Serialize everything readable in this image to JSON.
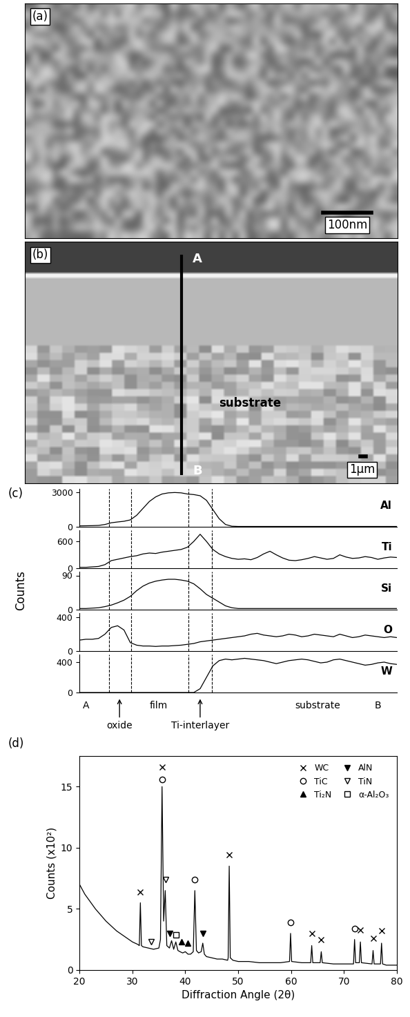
{
  "images": [
    {
      "label": "(a)",
      "scale_bar": "100nm"
    },
    {
      "label": "(b)",
      "line_start": "A",
      "line_end": "B",
      "region": "substrate",
      "scale_bar": "1µm"
    }
  ],
  "chart_data": [
    {
      "type": "line",
      "label": "(c)",
      "ylabel": "Counts",
      "x": [
        0,
        2,
        4,
        6,
        8,
        10,
        12,
        14,
        16,
        18,
        20,
        22,
        24,
        26,
        28,
        30,
        32,
        34,
        36,
        38,
        40,
        42,
        44,
        46,
        48,
        50,
        52,
        54,
        56,
        58,
        60,
        62,
        64,
        66,
        68,
        70,
        72,
        74,
        76,
        78,
        80,
        82,
        84,
        86,
        88,
        90,
        92,
        94,
        96,
        98,
        100
      ],
      "series": [
        {
          "name": "Al",
          "color": "#000000",
          "values": [
            80,
            90,
            100,
            120,
            200,
            350,
            420,
            480,
            600,
            1000,
            1600,
            2200,
            2600,
            2850,
            2950,
            2980,
            2950,
            2850,
            2800,
            2700,
            2300,
            1500,
            700,
            200,
            50,
            30,
            30,
            30,
            30,
            30,
            30,
            30,
            30,
            30,
            30,
            30,
            30,
            30,
            30,
            30,
            30,
            30,
            30,
            30,
            30,
            30,
            30,
            30,
            30,
            30,
            30
          ]
        }
      ],
      "xlim": [
        0,
        100
      ],
      "ylim": [
        0,
        3300
      ],
      "yticks": [
        0,
        3000
      ],
      "tick_labels": "y",
      "boundaries": [
        9.3,
        16.3,
        34.3,
        41.7
      ]
    },
    {
      "type": "line",
      "x": [
        0,
        2,
        4,
        6,
        8,
        10,
        12,
        14,
        16,
        18,
        20,
        22,
        24,
        26,
        28,
        30,
        32,
        34,
        36,
        38,
        40,
        42,
        44,
        46,
        48,
        50,
        52,
        54,
        56,
        58,
        60,
        62,
        64,
        66,
        68,
        70,
        72,
        74,
        76,
        78,
        80,
        82,
        84,
        86,
        88,
        90,
        92,
        94,
        96,
        98,
        100
      ],
      "series": [
        {
          "name": "Ti",
          "color": "#000000",
          "values": [
            20,
            20,
            30,
            40,
            80,
            170,
            200,
            230,
            260,
            280,
            320,
            340,
            330,
            360,
            380,
            400,
            420,
            470,
            600,
            760,
            600,
            420,
            320,
            260,
            220,
            200,
            210,
            190,
            240,
            320,
            380,
            300,
            230,
            180,
            170,
            190,
            220,
            260,
            230,
            200,
            220,
            300,
            250,
            220,
            230,
            260,
            240,
            200,
            230,
            250,
            240
          ]
        }
      ],
      "xlim": [
        0,
        100
      ],
      "ylim": [
        0,
        850
      ],
      "yticks": [
        0,
        600
      ],
      "tick_labels": "y",
      "boundaries": [
        9.3,
        16.3,
        34.3,
        41.7
      ]
    },
    {
      "type": "line",
      "x": [
        0,
        2,
        4,
        6,
        8,
        10,
        12,
        14,
        16,
        18,
        20,
        22,
        24,
        26,
        28,
        30,
        32,
        34,
        36,
        38,
        40,
        42,
        44,
        46,
        48,
        50,
        52,
        54,
        56,
        58,
        60,
        62,
        64,
        66,
        68,
        70,
        72,
        74,
        76,
        78,
        80,
        82,
        84,
        86,
        88,
        90,
        92,
        94,
        96,
        98,
        100
      ],
      "series": [
        {
          "name": "Si",
          "color": "#000000",
          "values": [
            3,
            3,
            4,
            5,
            8,
            12,
            18,
            25,
            35,
            50,
            62,
            70,
            75,
            78,
            80,
            80,
            78,
            75,
            68,
            55,
            40,
            30,
            20,
            10,
            5,
            3,
            3,
            3,
            3,
            3,
            3,
            3,
            3,
            3,
            3,
            3,
            3,
            3,
            3,
            3,
            3,
            3,
            3,
            3,
            3,
            3,
            3,
            3,
            3,
            3,
            3
          ]
        }
      ],
      "xlim": [
        0,
        100
      ],
      "ylim": [
        0,
        100
      ],
      "yticks": [
        0,
        90
      ],
      "tick_labels": "y",
      "boundaries": [
        9.3,
        16.3,
        34.3,
        41.7
      ]
    },
    {
      "type": "line",
      "x": [
        0,
        2,
        4,
        6,
        8,
        10,
        12,
        14,
        16,
        18,
        20,
        22,
        24,
        26,
        28,
        30,
        32,
        34,
        36,
        38,
        40,
        42,
        44,
        46,
        48,
        50,
        52,
        54,
        56,
        58,
        60,
        62,
        64,
        66,
        68,
        70,
        72,
        74,
        76,
        78,
        80,
        82,
        84,
        86,
        88,
        90,
        92,
        94,
        96,
        98,
        100
      ],
      "series": [
        {
          "name": "O",
          "color": "#000000",
          "values": [
            130,
            140,
            140,
            150,
            200,
            280,
            300,
            250,
            100,
            70,
            60,
            60,
            55,
            60,
            60,
            65,
            70,
            80,
            90,
            110,
            120,
            130,
            140,
            150,
            160,
            170,
            180,
            200,
            210,
            190,
            180,
            170,
            180,
            200,
            190,
            170,
            180,
            200,
            190,
            180,
            170,
            200,
            180,
            160,
            170,
            190,
            180,
            170,
            160,
            170,
            160
          ]
        }
      ],
      "xlim": [
        0,
        100
      ],
      "ylim": [
        0,
        450
      ],
      "yticks": [
        0,
        400
      ],
      "tick_labels": "y",
      "boundaries": [
        9.3,
        16.3,
        34.3,
        41.7
      ]
    },
    {
      "type": "line",
      "x": [
        0,
        2,
        4,
        6,
        8,
        10,
        12,
        14,
        16,
        18,
        20,
        22,
        24,
        26,
        28,
        30,
        32,
        34,
        36,
        38,
        40,
        42,
        44,
        46,
        48,
        50,
        52,
        54,
        56,
        58,
        60,
        62,
        64,
        66,
        68,
        70,
        72,
        74,
        76,
        78,
        80,
        82,
        84,
        86,
        88,
        90,
        92,
        94,
        96,
        98,
        100
      ],
      "series": [
        {
          "name": "W",
          "color": "#000000",
          "values": [
            0,
            0,
            0,
            0,
            0,
            0,
            0,
            0,
            0,
            0,
            0,
            0,
            0,
            0,
            0,
            0,
            0,
            0,
            0,
            50,
            200,
            350,
            420,
            440,
            430,
            440,
            450,
            440,
            430,
            420,
            400,
            380,
            400,
            420,
            430,
            440,
            430,
            410,
            390,
            400,
            430,
            440,
            420,
            400,
            380,
            360,
            370,
            390,
            400,
            380,
            370
          ]
        }
      ],
      "xlim": [
        0,
        100
      ],
      "ylim": [
        0,
        500
      ],
      "yticks": [
        0,
        400
      ],
      "tick_labels": "y",
      "boundaries": [
        9.3,
        16.3,
        34.3,
        41.7
      ],
      "annotations": [
        {
          "text": "A",
          "x": 2
        },
        {
          "text": "oxide",
          "x": 12.6,
          "arrow": true
        },
        {
          "text": "film",
          "x": 25
        },
        {
          "text": "Ti-interlayer",
          "x": 38,
          "arrow": true
        },
        {
          "text": "substrate",
          "x": 75
        },
        {
          "text": "B",
          "x": 94
        }
      ]
    },
    {
      "type": "line",
      "label": "(d)",
      "xlabel": "Diffraction Angle (2θ)",
      "ylabel": "Counts (x10²)",
      "color": "#000000",
      "x": [
        20,
        21,
        22,
        23,
        24,
        25,
        26,
        27,
        28,
        29,
        30,
        31,
        31.3,
        31.5,
        31.7,
        32,
        33,
        34,
        35,
        35.3,
        35.6,
        35.9,
        36.2,
        36.5,
        37,
        37.4,
        37.8,
        38.2,
        38.6,
        39,
        39.5,
        40,
        40.5,
        41,
        41.5,
        41.8,
        42.1,
        42.5,
        43,
        43.3,
        43.6,
        44,
        45,
        46,
        47,
        48,
        48.1,
        48.3,
        48.5,
        49,
        50,
        52,
        54,
        56,
        58,
        59.7,
        59.9,
        60.1,
        62,
        63.7,
        63.9,
        64.1,
        65.5,
        65.7,
        65.9,
        68,
        70,
        71.8,
        72.0,
        72.2,
        72.9,
        73.1,
        73.3,
        75.3,
        75.5,
        75.7,
        76.9,
        77.1,
        77.3,
        78,
        80
      ],
      "values": [
        7.0,
        6.2,
        5.6,
        5.0,
        4.5,
        4.0,
        3.6,
        3.2,
        2.9,
        2.6,
        2.3,
        2.1,
        2.0,
        5.5,
        2.0,
        1.9,
        1.8,
        1.7,
        1.8,
        2.5,
        15.0,
        4.0,
        6.5,
        2.0,
        1.8,
        2.4,
        1.7,
        2.3,
        1.6,
        1.5,
        1.4,
        1.5,
        1.3,
        1.3,
        1.5,
        6.5,
        1.6,
        1.4,
        1.5,
        2.2,
        1.3,
        1.1,
        1.0,
        0.9,
        0.9,
        0.8,
        1.0,
        8.5,
        1.0,
        0.8,
        0.7,
        0.7,
        0.6,
        0.6,
        0.6,
        0.7,
        3.0,
        0.7,
        0.6,
        0.6,
        2.0,
        0.6,
        0.6,
        1.5,
        0.6,
        0.5,
        0.5,
        0.5,
        2.5,
        0.6,
        0.6,
        2.3,
        0.6,
        0.5,
        1.6,
        0.5,
        0.5,
        2.2,
        0.5,
        0.4,
        0.4
      ],
      "xlim": [
        20,
        80
      ],
      "ylim": [
        0,
        17.5
      ],
      "xticks": [
        20,
        30,
        40,
        50,
        60,
        70,
        80
      ],
      "yticks": [
        0,
        5,
        10,
        15
      ],
      "legend": "upper right",
      "phases": [
        {
          "name": "WC",
          "marker": "x",
          "x": [
            31.5,
            35.6,
            48.3,
            63.9,
            65.7,
            73.1,
            75.5,
            77.1
          ],
          "y": [
            6.4,
            16.6,
            9.4,
            3.0,
            2.5,
            3.3,
            2.6,
            3.2
          ]
        },
        {
          "name": "TiC",
          "marker": "open_circle",
          "x": [
            35.6,
            41.8,
            59.9,
            72.0
          ],
          "y": [
            15.6,
            7.4,
            3.9,
            3.4
          ]
        },
        {
          "name": "Ti₂N",
          "marker": "triangle_up",
          "x": [
            39.3,
            40.5
          ],
          "y": [
            2.3,
            2.2
          ]
        },
        {
          "name": "AlN",
          "marker": "triangle_down",
          "x": [
            37.0,
            43.3
          ],
          "y": [
            3.0,
            3.0
          ]
        },
        {
          "name": "TiN",
          "marker": "open_triangle_down",
          "x": [
            33.6,
            36.3
          ],
          "y": [
            2.3,
            7.4
          ]
        },
        {
          "name": "α-Al₂O₃",
          "marker": "open_square",
          "x": [
            38.2
          ],
          "y": [
            2.9
          ]
        }
      ]
    }
  ]
}
